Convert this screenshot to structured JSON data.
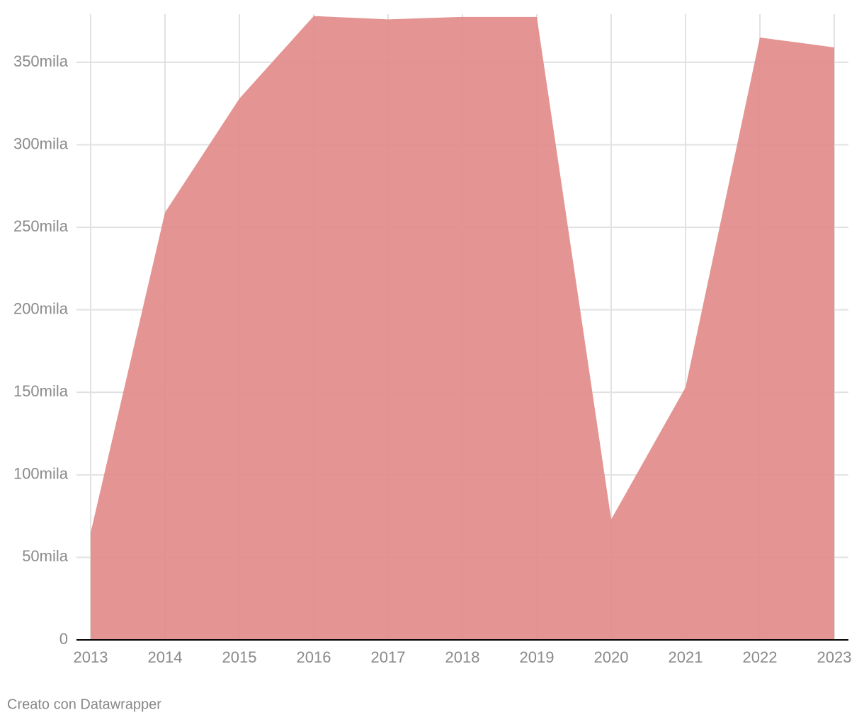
{
  "chart_data": {
    "type": "area",
    "x": [
      2013,
      2014,
      2015,
      2016,
      2017,
      2018,
      2019,
      2020,
      2021,
      2022,
      2023
    ],
    "values": [
      65000,
      259000,
      328000,
      378000,
      376000,
      377500,
      377500,
      73000,
      153000,
      365000,
      359000
    ],
    "color": "#e28b89",
    "xlim": [
      2013,
      2023
    ],
    "xticks": [
      2013,
      2014,
      2015,
      2016,
      2017,
      2018,
      2019,
      2020,
      2021,
      2022,
      2023
    ],
    "ylim": [
      0,
      380000
    ],
    "yticks": [
      0,
      {
        "value": 50000,
        "label": "50mila"
      },
      {
        "value": 100000,
        "label": "100mila"
      },
      {
        "value": 150000,
        "label": "150mila"
      },
      {
        "value": 200000,
        "label": "200mila"
      },
      {
        "value": 250000,
        "label": "250mila"
      },
      {
        "value": 300000,
        "label": "300mila"
      },
      {
        "value": 350000,
        "label": "350mila"
      }
    ],
    "grid": true,
    "footer": "Creato con Datawrapper"
  }
}
